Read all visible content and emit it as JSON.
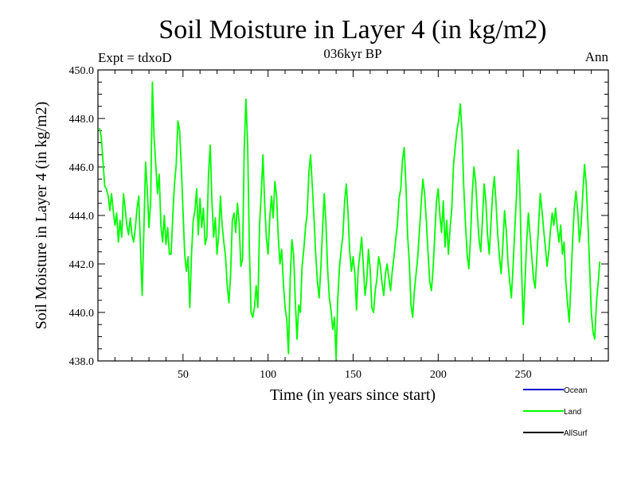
{
  "chart_data": {
    "type": "line",
    "title": "Soil Moisture in Layer 4 (in kg/m2)",
    "subtitle": "036kyr BP",
    "expt_label": "Expt = tdxoD",
    "period_label": "Ann",
    "xlabel": "Time (in years since start)",
    "ylabel": "Soil Moisture in Layer 4 (in kg/m2)",
    "xlim": [
      0,
      300
    ],
    "ylim": [
      438.0,
      450.0
    ],
    "x_ticks": [
      50,
      100,
      150,
      200,
      250
    ],
    "x_tick_labels": [
      "50",
      "100",
      "150",
      "200",
      "250"
    ],
    "y_ticks": [
      438,
      440,
      442,
      444,
      446,
      448,
      450
    ],
    "y_tick_labels": [
      "438.0",
      "440.0",
      "442.0",
      "444.0",
      "446.0",
      "448.0",
      "450.0"
    ],
    "grid": false,
    "legend": [
      {
        "name": "Ocean",
        "color": "#0000cc"
      },
      {
        "name": "Land",
        "color": "#00ff00"
      },
      {
        "name": "AllSurf",
        "color": "#000000"
      }
    ],
    "series": [
      {
        "name": "Land",
        "color": "#00ff00",
        "x_start": 1,
        "x_step": 1,
        "values": [
          447.6,
          447.2,
          446.2,
          445.2,
          445.1,
          444.8,
          444.2,
          444.9,
          444.2,
          443.6,
          444.1,
          442.9,
          443.8,
          443.1,
          444.9,
          444.3,
          443.6,
          443.2,
          443.9,
          443.2,
          442.9,
          443.5,
          444.3,
          444.8,
          442.7,
          440.7,
          443.4,
          446.2,
          445.1,
          443.5,
          444.6,
          449.5,
          447.2,
          446.1,
          444.9,
          445.7,
          443.6,
          442.9,
          444.0,
          442.8,
          443.5,
          442.4,
          442.4,
          444.0,
          445.3,
          446.1,
          447.9,
          447.5,
          446.0,
          444.2,
          442.4,
          441.7,
          442.3,
          440.2,
          442.4,
          443.8,
          444.2,
          445.1,
          443.2,
          444.7,
          443.5,
          444.3,
          442.8,
          443.1,
          445.7,
          446.9,
          444.6,
          443.1,
          443.9,
          442.4,
          443.2,
          444.8,
          443.6,
          442.9,
          442.3,
          441.1,
          440.4,
          441.6,
          443.8,
          444.1,
          443.3,
          444.5,
          443.7,
          441.9,
          442.2,
          446.8,
          448.8,
          446.9,
          442.7,
          440.0,
          439.8,
          440.2,
          441.1,
          440.2,
          443.6,
          444.9,
          446.5,
          444.5,
          443.1,
          442.4,
          443.9,
          444.8,
          443.9,
          445.4,
          444.8,
          443.1,
          442.0,
          442.6,
          441.2,
          440.2,
          439.7,
          438.3,
          441.4,
          443.0,
          442.4,
          440.5,
          438.9,
          440.3,
          440.0,
          441.9,
          442.6,
          443.5,
          444.1,
          445.8,
          446.5,
          445.2,
          443.9,
          442.4,
          441.3,
          440.6,
          441.8,
          443.4,
          444.9,
          443.7,
          441.8,
          440.6,
          440.1,
          439.3,
          439.8,
          438.1,
          440.6,
          441.9,
          442.6,
          443.2,
          444.6,
          445.3,
          444.1,
          442.5,
          441.7,
          442.3,
          441.6,
          440.1,
          441.8,
          442.4,
          443.1,
          441.9,
          440.7,
          441.3,
          442.6,
          441.8,
          440.2,
          440.0,
          440.9,
          441.4,
          442.3,
          441.9,
          441.2,
          440.7,
          441.6,
          442.0,
          441.4,
          440.9,
          441.7,
          442.3,
          443.0,
          443.6,
          444.7,
          445.1,
          446.3,
          446.8,
          445.3,
          443.2,
          442.1,
          440.3,
          439.8,
          440.9,
          441.6,
          442.3,
          443.4,
          444.5,
          445.5,
          444.9,
          443.8,
          442.5,
          441.3,
          440.9,
          441.8,
          443.2,
          444.6,
          445.1,
          444.0,
          443.3,
          444.6,
          442.7,
          443.8,
          442.4,
          443.5,
          444.3,
          446.1,
          446.8,
          447.5,
          447.9,
          448.6,
          447.4,
          445.2,
          443.7,
          442.4,
          441.8,
          443.1,
          444.9,
          446.0,
          445.4,
          444.1,
          443.0,
          442.5,
          443.8,
          445.3,
          444.6,
          443.2,
          442.4,
          443.7,
          444.9,
          445.6,
          444.5,
          443.2,
          442.3,
          441.6,
          442.8,
          444.2,
          443.4,
          442.1,
          441.3,
          440.6,
          441.9,
          443.4,
          444.8,
          446.7,
          445.0,
          441.8,
          439.5,
          441.2,
          442.9,
          444.1,
          443.2,
          442.3,
          441.4,
          441.0,
          442.3,
          443.6,
          444.9,
          444.2,
          443.4,
          442.7,
          441.9,
          442.5,
          443.4,
          444.1,
          443.6,
          444.3,
          443.5,
          442.9,
          443.6,
          442.4,
          442.9,
          441.3,
          440.4,
          439.6,
          441.2,
          443.0,
          444.3,
          445.0,
          444.2,
          442.9,
          443.6,
          444.9,
          446.1,
          445.3,
          443.7,
          441.9,
          440.0,
          439.2,
          438.9,
          440.4,
          441.2,
          442.1
        ]
      }
    ]
  }
}
